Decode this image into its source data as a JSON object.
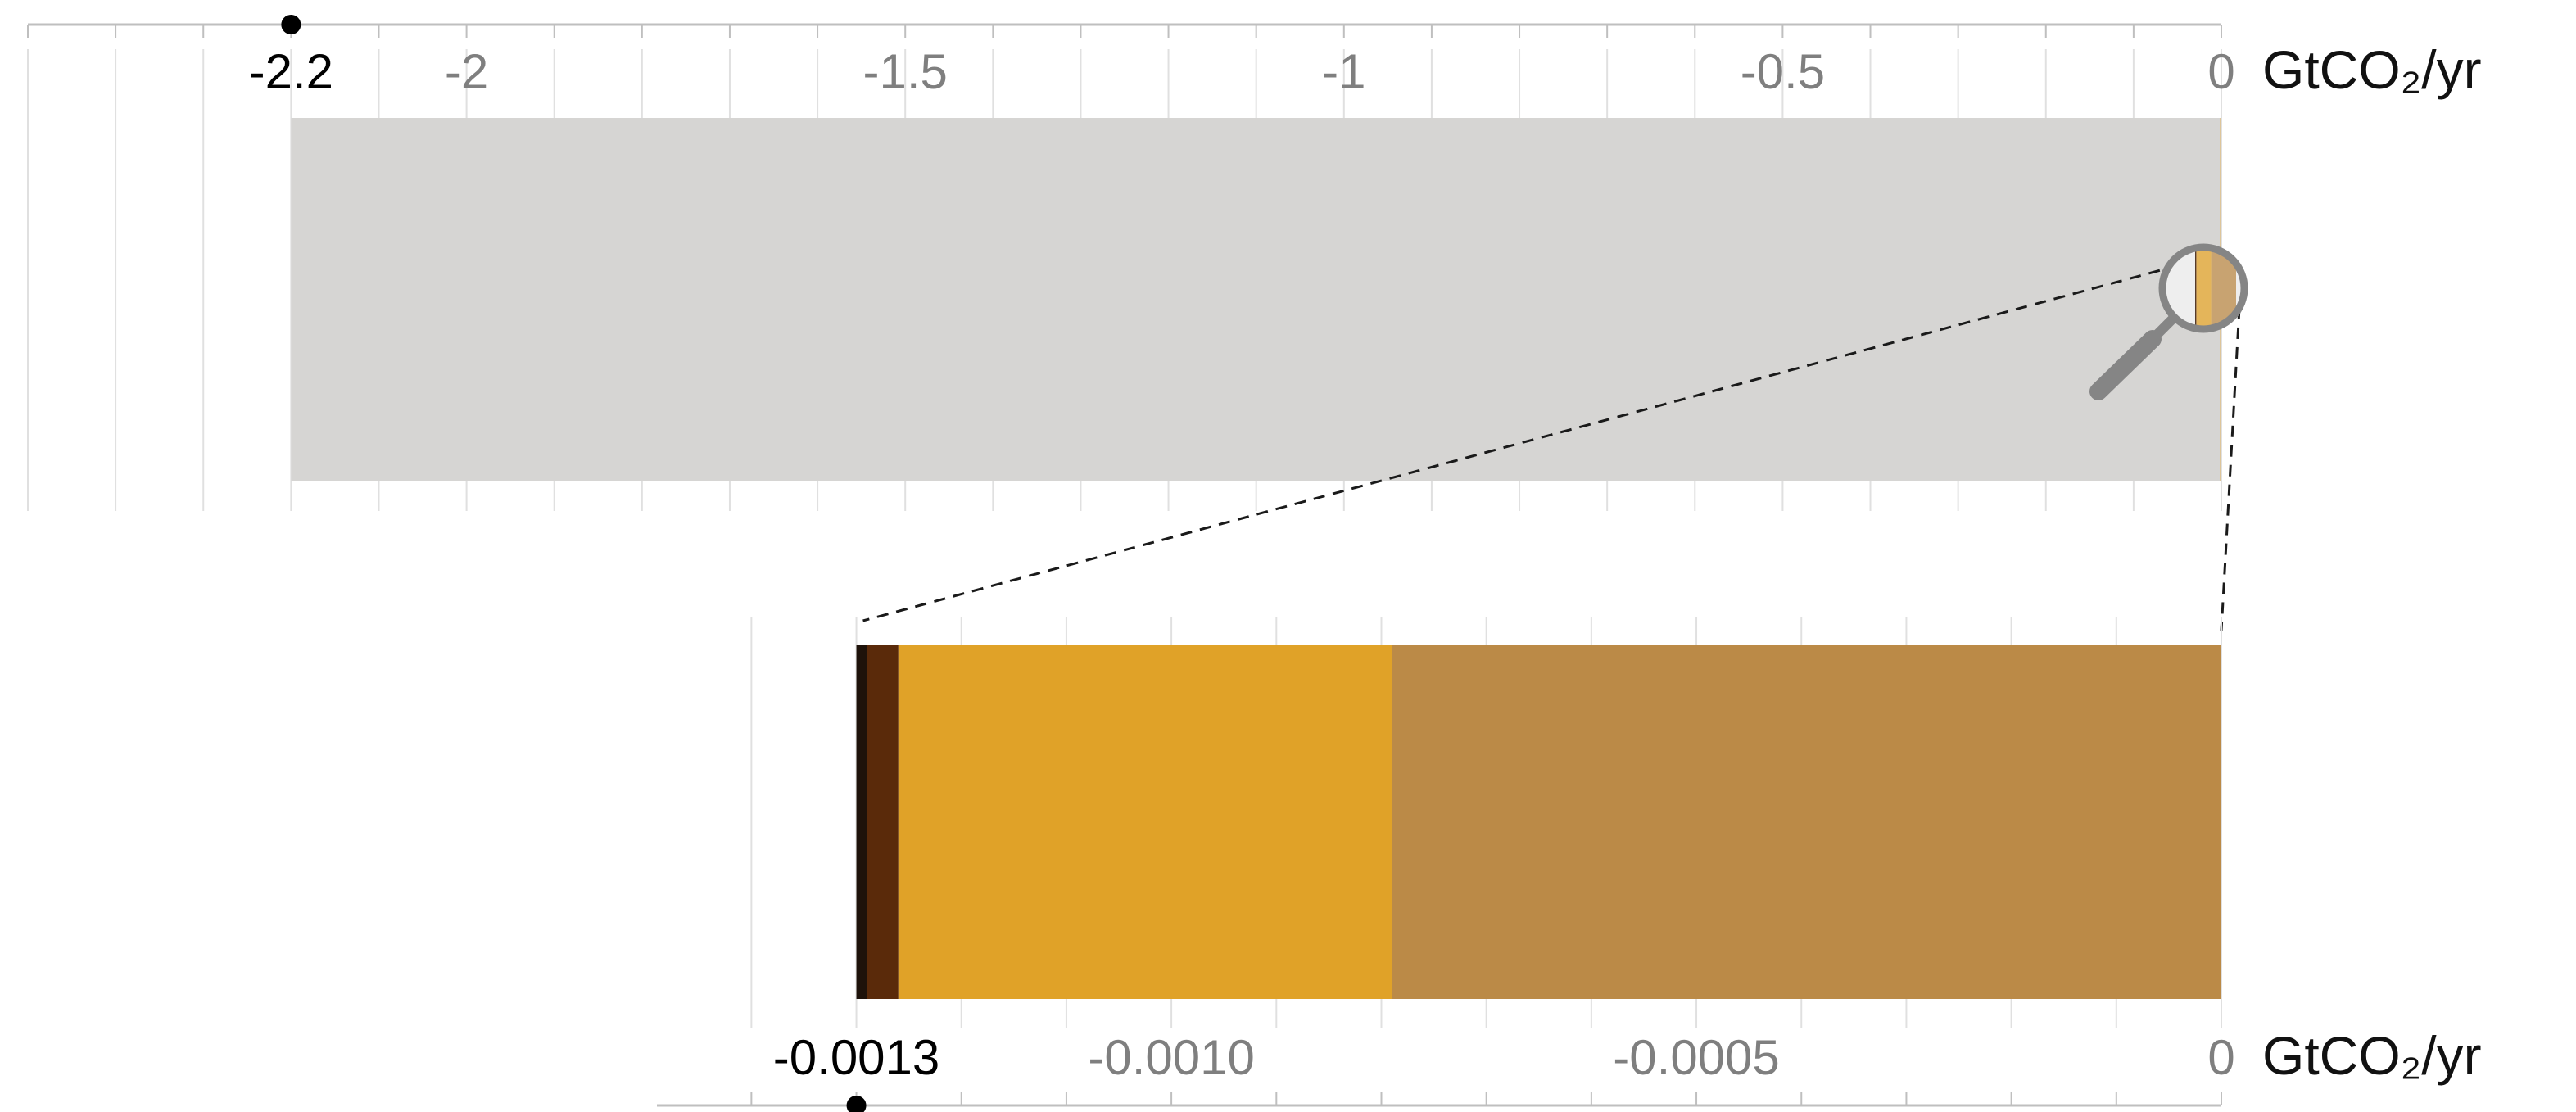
{
  "chart_data": [
    {
      "type": "bar",
      "orientation": "horizontal",
      "stacked": true,
      "xlim": [
        -2.5,
        0
      ],
      "ticks": [
        -2,
        -1.5,
        -1,
        -0.5,
        0
      ],
      "tick_labels": [
        "-2",
        "-1.5",
        "-1",
        "-0.5",
        "0"
      ],
      "unit": "GtCO₂/yr",
      "marker": {
        "value": -2.2,
        "label": "-2.2"
      },
      "segments": [
        {
          "start": -2.2,
          "end": -0.0013,
          "color": "#d6d5d3"
        },
        {
          "start": -0.0013,
          "end": 0,
          "color": "#e0a43a"
        }
      ],
      "grid": true,
      "zoom_lens": {
        "value": -0.0013
      }
    },
    {
      "type": "bar",
      "orientation": "horizontal",
      "stacked": true,
      "xlim": [
        -0.00149,
        0
      ],
      "ticks": [
        -0.001,
        -0.0005,
        0
      ],
      "tick_labels": [
        "-0.0010",
        "-0.0005",
        "0"
      ],
      "unit": "GtCO₂/yr",
      "marker": {
        "value": -0.0013,
        "label": "-0.0013"
      },
      "segments": [
        {
          "start": -0.0013,
          "end": -0.00129,
          "color": "#1e120a"
        },
        {
          "start": -0.00129,
          "end": -0.00126,
          "color": "#5a2a0a"
        },
        {
          "start": -0.00126,
          "end": -0.00079,
          "color": "#e0a228"
        },
        {
          "start": -0.00079,
          "end": 0,
          "color": "#bb8a47"
        }
      ],
      "grid": true
    }
  ],
  "colors": {
    "grid": "#e0e0e0",
    "axis": "#bfbfbf",
    "lens": "#858585",
    "dash": "#1a1a1a"
  }
}
